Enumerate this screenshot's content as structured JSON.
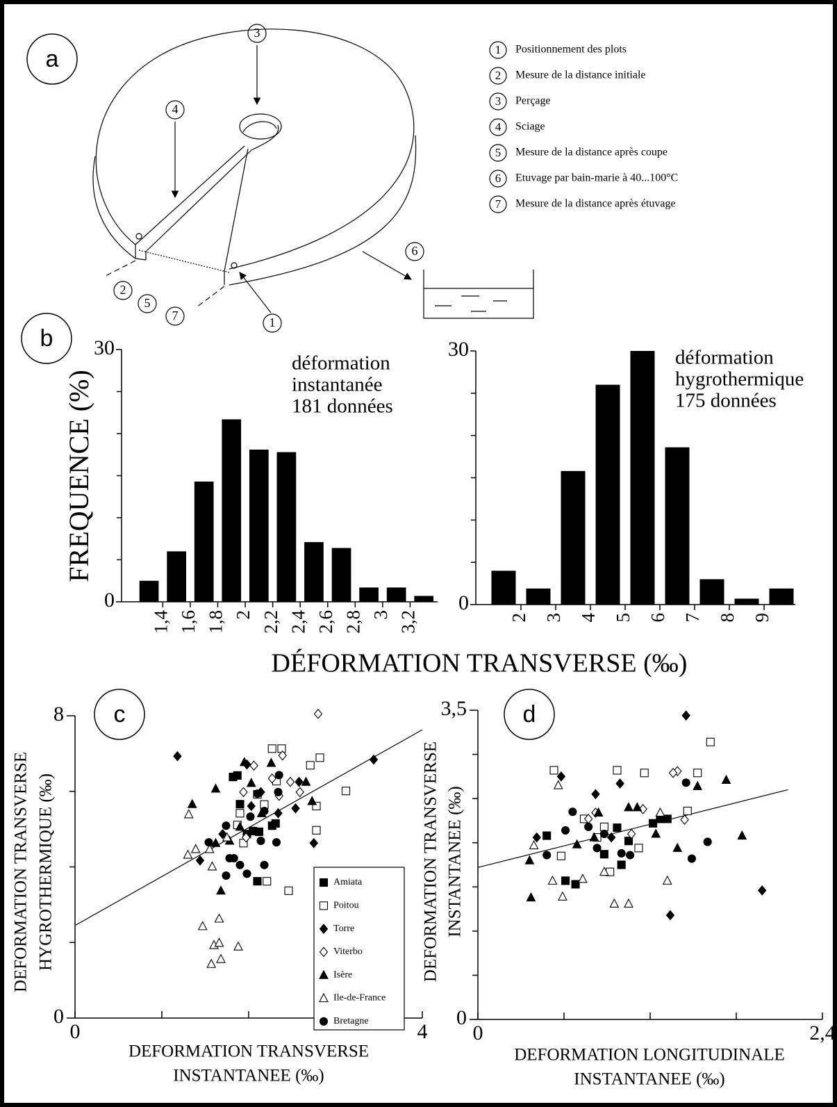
{
  "panel_labels": [
    "a",
    "b",
    "c",
    "d"
  ],
  "panel_a": {
    "steps": [
      {
        "number": "1",
        "text": "Positionnement des plots"
      },
      {
        "number": "2",
        "text": "Mesure de la distance initiale"
      },
      {
        "number": "3",
        "text": "Perçage"
      },
      {
        "number": "4",
        "text": "Sciage"
      },
      {
        "number": "5",
        "text": "Mesure de la distance après coupe"
      },
      {
        "number": "6",
        "text": "Etuvage par bain-marie à 40...100°C"
      },
      {
        "number": "7",
        "text": "Mesure de la distance après étuvage"
      }
    ]
  },
  "panel_b": {
    "ylabel": "FREQUENCE (%)",
    "xlabel": "DÉFORMATION TRANSVERSE (‰)"
  },
  "chart_data": [
    {
      "type": "histogram",
      "annotation": [
        "déformation",
        "instantanée",
        "181 données"
      ],
      "color": "#000000",
      "bins": [
        1.2,
        1.4,
        1.6,
        1.8,
        2.0,
        2.2,
        2.4,
        2.6,
        2.8,
        3.0,
        3.2,
        3.4
      ],
      "values": [
        2.5,
        6,
        14.3,
        21.7,
        18.1,
        17.8,
        7.1,
        6.4,
        1.7,
        1.7,
        0.7
      ],
      "xlim": [
        1.1,
        3.4
      ],
      "ylim": [
        0,
        30
      ],
      "xticks": [
        {
          "value": 1.4,
          "label": "1,4"
        },
        {
          "value": 1.6,
          "label": "1,6"
        },
        {
          "value": 1.8,
          "label": "1,8"
        },
        2,
        {
          "value": 2.2,
          "label": "2,2"
        },
        {
          "value": 2.4,
          "label": "2,4"
        },
        {
          "value": 2.6,
          "label": "2,6"
        },
        {
          "value": 2.8,
          "label": "2,8"
        },
        3,
        {
          "value": 3.2,
          "label": "3,2"
        }
      ],
      "yticks": [
        0,
        30
      ],
      "yminorticks": [
        5,
        10,
        15,
        20,
        25
      ]
    },
    {
      "type": "histogram",
      "annotation": [
        "déformation",
        "hygrothermique",
        "175 données"
      ],
      "color": "#000000",
      "bins": [
        1,
        2,
        3,
        4,
        5,
        6,
        7,
        8,
        9,
        10
      ],
      "values": [
        4,
        1.9,
        15.8,
        26,
        30,
        18.6,
        3,
        0.7,
        1.9
      ],
      "xlim": [
        0.7,
        9.9
      ],
      "ylim": [
        0,
        30
      ],
      "xticks": [
        2,
        3,
        4,
        5,
        6,
        7,
        8,
        9
      ],
      "yticks": [
        0,
        30
      ],
      "yminorticks": [
        5,
        10,
        15,
        20,
        25
      ]
    },
    {
      "type": "scatter",
      "xlabel": [
        "DEFORMATION TRANSVERSE",
        "INSTANTANEE (‰)"
      ],
      "ylabel": [
        "DEFORMATION TRANSVERSE",
        "HYGROTHERMIQUE (‰)"
      ],
      "xlim": [
        0,
        4
      ],
      "ylim": [
        0,
        8
      ],
      "xticks": [
        0,
        4
      ],
      "xminorticks": [
        1,
        2,
        3
      ],
      "yticks": [
        0,
        8
      ],
      "yminorticks": [
        2,
        4,
        6
      ],
      "legend": "lower right",
      "fit": {
        "x": [
          0,
          4
        ],
        "y": [
          2.45,
          7.63
        ]
      },
      "series": [
        {
          "name": "Amiata",
          "marker": "square",
          "filled": true,
          "x": [
            1.82,
            1.87,
            1.9,
            2.1,
            2.27,
            2.05,
            2.12,
            2.31,
            1.98
          ],
          "y": [
            6.38,
            6.42,
            5.66,
            3.62,
            5.09,
            4.95,
            4.93,
            5.15,
            4.87
          ]
        },
        {
          "name": "Poitou",
          "marker": "square",
          "filled": false,
          "x": [
            2.27,
            2.38,
            2.82,
            2.71,
            3.12,
            2.78,
            2.78,
            2.46,
            2.21,
            2.1,
            2.18,
            1.9,
            1.87,
            1.94,
            2.32
          ],
          "y": [
            7.13,
            7.13,
            6.89,
            6.69,
            6.01,
            5.61,
            4.97,
            3.37,
            3.62,
            5.92,
            5.65,
            5.42,
            5.11,
            4.63,
            6.27
          ]
        },
        {
          "name": "Torre",
          "marker": "diamond",
          "filled": true,
          "x": [
            1.18,
            3.44,
            1.44,
            1.98,
            2.34,
            2.54,
            2.75,
            2.58,
            2.14,
            1.7,
            2.03
          ],
          "y": [
            6.93,
            6.84,
            4.17,
            6.71,
            5.42,
            5.55,
            4.63,
            6.25,
            5.98,
            4.87,
            5.61
          ]
        },
        {
          "name": "Viterbo",
          "marker": "diamond",
          "filled": false,
          "x": [
            2.8,
            2.06,
            2.39,
            2.27,
            2.59,
            2.48,
            1.97,
            2.35,
            1.94
          ],
          "y": [
            8.05,
            6.68,
            6.95,
            6.34,
            5.98,
            6.25,
            4.78,
            5.88,
            5.98
          ]
        },
        {
          "name": "Isère",
          "marker": "triangle",
          "filled": true,
          "x": [
            1.35,
            1.62,
            1.95,
            1.68,
            2.66,
            2.73,
            2.15,
            1.78,
            1.9,
            2.26,
            2.03,
            1.62
          ],
          "y": [
            5.66,
            6.07,
            6.77,
            3.37,
            6.25,
            5.74,
            5.42,
            4.69,
            5.06,
            6.75,
            6.22,
            4.63
          ]
        },
        {
          "name": "Ile-de-France",
          "marker": "triangle",
          "filled": false,
          "x": [
            1.31,
            1.3,
            1.39,
            1.55,
            1.47,
            1.66,
            1.6,
            1.66,
            1.57,
            1.68,
            1.88,
            1.75,
            1.58
          ],
          "y": [
            5.39,
            4.32,
            4.47,
            4.47,
            2.43,
            2.63,
            1.93,
            1.99,
            1.43,
            1.56,
            1.89,
            4.78,
            4.01
          ]
        },
        {
          "name": "Bretagne",
          "marker": "circle",
          "filled": true,
          "x": [
            2.35,
            2.1,
            1.74,
            1.78,
            1.98,
            2.18,
            2.32,
            2.34,
            1.83,
            1.74,
            2.02,
            2.18,
            2.14,
            1.54,
            1.9
          ],
          "y": [
            6.43,
            5.94,
            5.09,
            4.23,
            3.82,
            4.05,
            4.65,
            5.98,
            4.23,
            3.77,
            5.33,
            5.48,
            4.69,
            4.65,
            4.05
          ]
        }
      ]
    },
    {
      "type": "scatter",
      "xlabel": [
        "DEFORMATION LONGITUDINALE",
        "INSTANTANEE (‰)"
      ],
      "ylabel": [
        "DEFORMATION TRANSVERSE",
        "INSTANTANEE (‰)"
      ],
      "xlim": [
        0,
        2.4
      ],
      "ylim": [
        0,
        3.5
      ],
      "xticks": [
        0,
        {
          "value": 2.4,
          "label": "2,4"
        }
      ],
      "xminorticks": [
        0.6,
        1.2,
        1.8
      ],
      "yticks": [
        0,
        {
          "value": 3.5,
          "label": "3,5"
        }
      ],
      "yminorticks": [
        0.5,
        1,
        1.5,
        2,
        2.5,
        3
      ],
      "fit": {
        "x": [
          0,
          2.16
        ],
        "y": [
          1.72,
          2.6
        ]
      },
      "series": [
        {
          "marker": "square",
          "filled": true,
          "x": [
            0.48,
            0.61,
            0.68,
            0.88,
            0.97,
            1.22,
            1.27,
            1.32,
            1.0,
            1.05
          ],
          "y": [
            2.08,
            1.57,
            1.53,
            1.87,
            2.17,
            2.22,
            2.27,
            2.27,
            1.75,
            2.02
          ]
        },
        {
          "marker": "square",
          "filled": false,
          "x": [
            0.53,
            0.97,
            1.16,
            1.53,
            1.62,
            1.46,
            0.83,
            0.92,
            0.58,
            1.12,
            0.74,
            0.88
          ],
          "y": [
            2.82,
            2.82,
            2.79,
            2.79,
            3.14,
            2.36,
            2.06,
            1.67,
            1.85,
            1.94,
            2.27,
            2.18
          ]
        },
        {
          "marker": "diamond",
          "filled": true,
          "x": [
            1.45,
            0.58,
            0.82,
            0.99,
            1.98,
            1.34,
            0.41,
            0.93
          ],
          "y": [
            3.44,
            2.75,
            2.55,
            2.67,
            1.46,
            1.18,
            2.06,
            2.06
          ]
        },
        {
          "marker": "diamond",
          "filled": false,
          "x": [
            1.39,
            1.36,
            1.44,
            0.82,
            0.77,
            1.15,
            1.07
          ],
          "y": [
            2.81,
            2.79,
            2.26,
            2.34,
            2.27,
            2.38,
            2.1
          ]
        },
        {
          "marker": "triangle",
          "filled": true,
          "x": [
            0.37,
            0.36,
            0.84,
            1.05,
            1.24,
            1.39,
            1.53,
            1.73,
            1.84,
            0.81,
            0.69,
            1.11
          ],
          "y": [
            1.38,
            1.8,
            2.34,
            2.4,
            2.1,
            1.94,
            2.64,
            2.71,
            2.08,
            2.06,
            1.98,
            2.4
          ]
        },
        {
          "marker": "triangle",
          "filled": false,
          "x": [
            0.39,
            0.52,
            0.59,
            0.56,
            0.95,
            1.05,
            1.32,
            0.88,
            0.73,
            1.27
          ],
          "y": [
            1.97,
            1.57,
            1.39,
            2.65,
            1.31,
            1.31,
            1.57,
            1.67,
            1.59,
            2.34
          ]
        },
        {
          "marker": "circle",
          "filled": true,
          "x": [
            0.66,
            0.77,
            0.88,
            0.83,
            1.06,
            1.45,
            1.6,
            1.49,
            0.48,
            0.68,
            1.0,
            0.61
          ],
          "y": [
            2.35,
            2.18,
            2.1,
            1.94,
            1.86,
            2.68,
            2.01,
            1.82,
            1.86,
            1.53,
            1.88,
            2.14
          ]
        }
      ]
    }
  ]
}
